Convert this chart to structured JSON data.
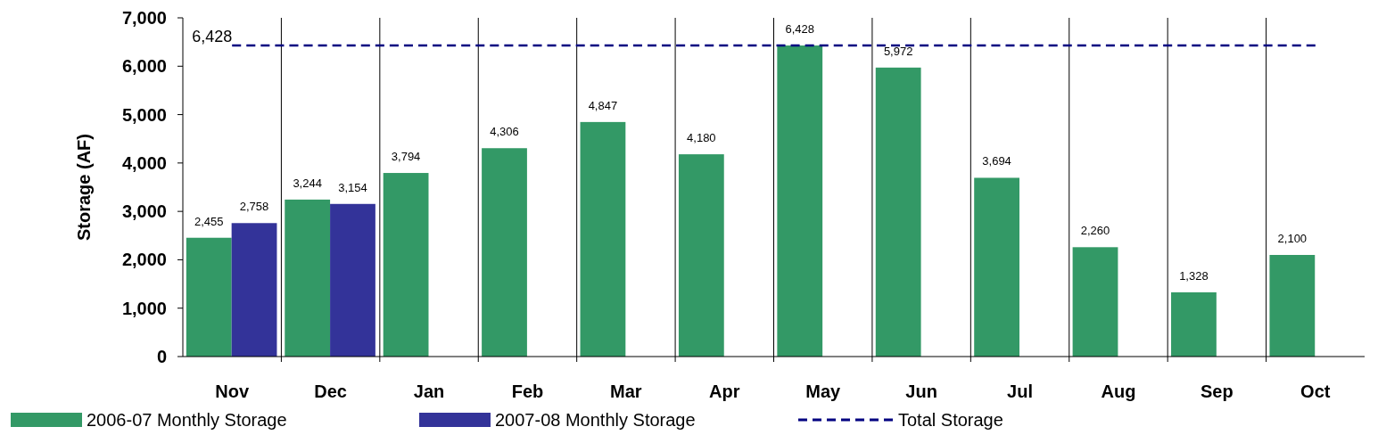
{
  "chart_data": {
    "type": "bar",
    "ylabel": "Storage (AF)",
    "categories": [
      "Nov",
      "Dec",
      "Jan",
      "Feb",
      "Mar",
      "Apr",
      "May",
      "Jun",
      "Jul",
      "Aug",
      "Sep",
      "Oct"
    ],
    "series": [
      {
        "name": "2006-07 Monthly Storage",
        "color": "#339966",
        "values": [
          2455,
          3244,
          3794,
          4306,
          4847,
          4180,
          6428,
          5972,
          3694,
          2260,
          1328,
          2100
        ],
        "value_labels": [
          "2,455",
          "3,244",
          "3,794",
          "4,306",
          "4,847",
          "4,180",
          "6,428",
          "5,972",
          "3,694",
          "2,260",
          "1,328",
          "2,100"
        ]
      },
      {
        "name": "2007-08 Monthly Storage",
        "color": "#333399",
        "values": [
          2758,
          3154,
          null,
          null,
          null,
          null,
          null,
          null,
          null,
          null,
          null,
          null
        ],
        "value_labels": [
          "2,758",
          "3,154",
          null,
          null,
          null,
          null,
          null,
          null,
          null,
          null,
          null,
          null
        ]
      },
      {
        "name": "Total Storage",
        "type": "line",
        "color": "#000080",
        "line_style": "dashed",
        "marker": "none",
        "values": [
          6428,
          6428,
          6428,
          6428,
          6428,
          6428,
          6428,
          6428,
          6428,
          6428,
          6428,
          6428
        ]
      }
    ],
    "ylim": [
      0,
      7000
    ],
    "yticks": [
      {
        "value": 0,
        "label": "0"
      },
      {
        "value": 1000,
        "label": "1,000"
      },
      {
        "value": 2000,
        "label": "2,000"
      },
      {
        "value": 3000,
        "label": "3,000"
      },
      {
        "value": 4000,
        "label": "4,000"
      },
      {
        "value": 5000,
        "label": "5,000"
      },
      {
        "value": 6000,
        "label": "6,000"
      },
      {
        "value": 7000,
        "label": "7,000"
      }
    ],
    "annotations": [
      {
        "text": "6,428",
        "x": "Nov",
        "y": 6428
      }
    ],
    "grid": "x",
    "legend": "bottom"
  }
}
